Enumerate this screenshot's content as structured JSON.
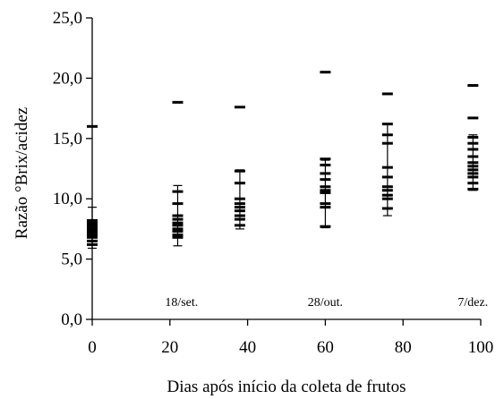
{
  "chart_data": {
    "type": "scatter",
    "title": "",
    "xlabel": "Dias após início da coleta de frutos",
    "ylabel": "Razão °Brix/acidez",
    "xlim": [
      0,
      100
    ],
    "ylim": [
      0,
      25
    ],
    "x_ticks": [
      0,
      20,
      40,
      60,
      80,
      100
    ],
    "x_tick_labels": [
      "0",
      "20",
      "40",
      "60",
      "80",
      "100"
    ],
    "y_ticks": [
      0,
      5,
      10,
      15,
      20,
      25
    ],
    "y_tick_labels": [
      "0,0",
      "5,0",
      "10,0",
      "15,0",
      "20,0",
      "25,0"
    ],
    "grid": false,
    "legend": "none",
    "marker": "horizontal-dash",
    "annotations": [
      {
        "text": "18/set.",
        "x": 23,
        "y": 1.5
      },
      {
        "text": "28/out.",
        "x": 60,
        "y": 1.5
      },
      {
        "text": "7/dez.",
        "x": 98,
        "y": 1.5
      }
    ],
    "series": [
      {
        "x": 0,
        "values": [
          6.2,
          6.5,
          6.8,
          7.0,
          7.2,
          7.4,
          7.6,
          7.8,
          8.0,
          8.2,
          16.0
        ],
        "error_bar": [
          5.9,
          9.3
        ]
      },
      {
        "x": 22,
        "values": [
          6.8,
          7.0,
          7.3,
          7.5,
          7.8,
          8.0,
          8.3,
          8.6,
          9.6,
          10.6,
          18.0
        ],
        "error_bar": [
          6.1,
          11.1
        ]
      },
      {
        "x": 38,
        "values": [
          7.8,
          8.3,
          8.6,
          9.0,
          9.3,
          9.6,
          10.0,
          11.3,
          12.3,
          17.6
        ],
        "error_bar": [
          7.5,
          12.4
        ]
      },
      {
        "x": 60,
        "values": [
          7.7,
          9.3,
          9.6,
          10.5,
          10.7,
          11.0,
          11.6,
          12.1,
          12.8,
          13.3,
          20.5
        ],
        "error_bar": [
          7.6,
          13.2
        ]
      },
      {
        "x": 76,
        "values": [
          9.2,
          10.0,
          10.3,
          10.7,
          11.0,
          11.8,
          12.6,
          14.6,
          15.3,
          16.2,
          18.7
        ],
        "error_bar": [
          8.6,
          16.2
        ]
      },
      {
        "x": 98,
        "values": [
          10.8,
          11.3,
          11.8,
          12.1,
          12.4,
          12.7,
          13.0,
          13.5,
          14.1,
          14.6,
          15.1,
          16.7,
          19.4
        ],
        "error_bar": [
          10.7,
          15.3
        ]
      }
    ]
  }
}
